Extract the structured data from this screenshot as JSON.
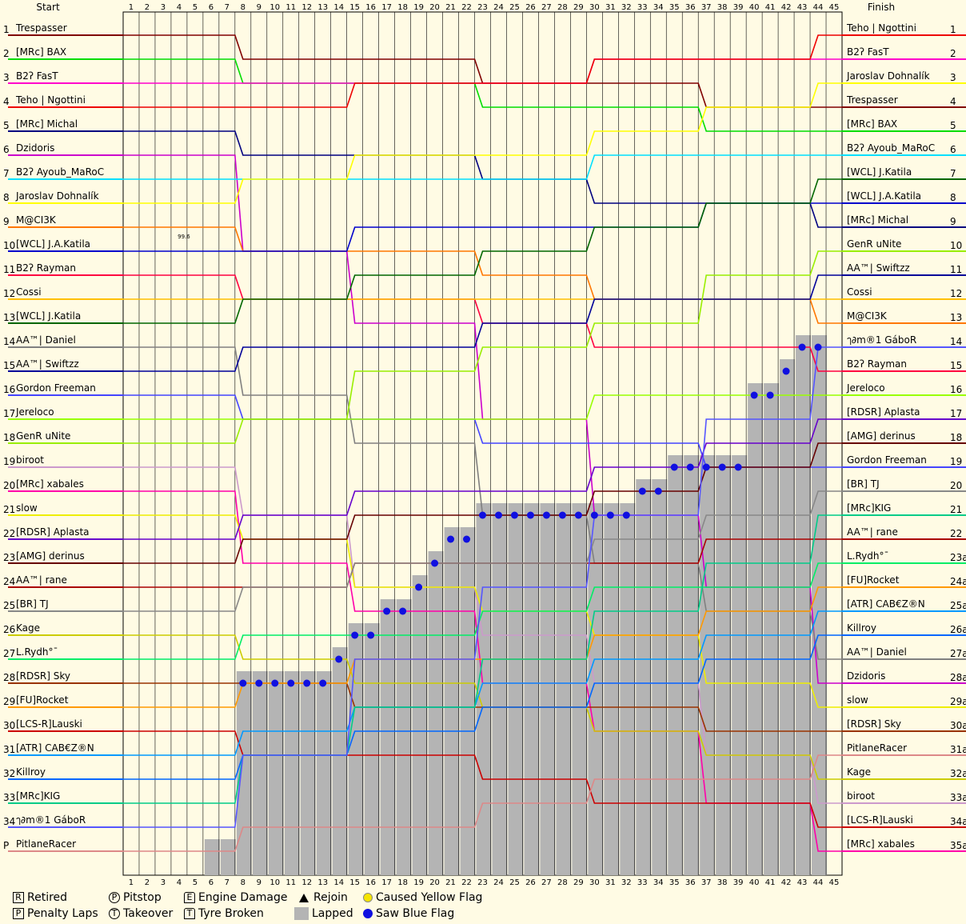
{
  "chart_data": {
    "type": "line",
    "title": "",
    "x_start_label": "Start",
    "x_end_label": "Finish",
    "laps": 45,
    "positions": 35,
    "start_pos_labels": [
      "1",
      "2",
      "3",
      "4",
      "5",
      "6",
      "7",
      "8",
      "9",
      "10",
      "11",
      "12",
      "13",
      "14",
      "15",
      "16",
      "17",
      "18",
      "19",
      "20",
      "21",
      "22",
      "23",
      "24",
      "25",
      "26",
      "27",
      "28",
      "29",
      "30",
      "31",
      "32",
      "33",
      "34",
      "P"
    ],
    "finish_pos_labels": [
      "1",
      "2",
      "3",
      "4",
      "5",
      "6",
      "7",
      "8",
      "9",
      "10",
      "11",
      "12",
      "13",
      "14",
      "15",
      "16",
      "17",
      "18",
      "19",
      "20",
      "21",
      "22",
      "23a",
      "24a",
      "25a",
      "26a",
      "27a",
      "28a",
      "29a",
      "30a",
      "31a",
      "32a",
      "33a",
      "34a",
      "35a"
    ],
    "start_names": [
      "Trespasser",
      "[MRc] BAX",
      "B2ʔ FasT",
      "Teho | Ngottini",
      "[MRc] Michal",
      "Dzidoris",
      "B2ʔ Ayoub_MaRoC",
      "Jaroslav Dohnalík",
      "M@CI3K",
      "[WCL] J.A.Katila",
      "B2ʔ Rayman",
      "Cossi",
      "[WCL] J.Katila",
      "AA™| Daniel",
      "AA™| Swiftzz",
      "Gordon Freeman",
      "Jereloco",
      "GenR uNite",
      "biroot",
      "[MRc] xabales",
      "slow",
      "[RDSR] Aplasta",
      "[AMG] derinus",
      "AA™| rane",
      "[BR] TJ",
      "Kage",
      "L.Rydh°¯",
      "[RDSR] Sky",
      "[FU]Rocket",
      "[LCS-R]Lauski",
      "[ATR] CAB€Z®N",
      "Killroy",
      "[MRc]KIG",
      "ๅ∂m®1 GáboR",
      "PitlaneRacer"
    ],
    "finish_names": [
      "Teho | Ngottini",
      "B2ʔ FasT",
      "Jaroslav Dohnalík",
      "Trespasser",
      "[MRc] BAX",
      "B2ʔ Ayoub_MaRoC",
      "[WCL] J.Katila",
      "[WCL] J.A.Katila",
      "[MRc] Michal",
      "GenR uNite",
      "AA™| Swiftzz",
      "Cossi",
      "M@CI3K",
      "ๅ∂m®1 GáboR",
      "B2ʔ Rayman",
      "Jereloco",
      "[RDSR] Aplasta",
      "[AMG] derinus",
      "Gordon Freeman",
      "[BR] TJ",
      "[MRc]KIG",
      "AA™| rane",
      "L.Rydh°¯",
      "[FU]Rocket",
      "[ATR] CAB€Z®N",
      "Killroy",
      "AA™| Daniel",
      "Dzidoris",
      "slow",
      "[RDSR] Sky",
      "PitlaneRacer",
      "Kage",
      "biroot",
      "[LCS-R]Lauski",
      "[MRc] xabales"
    ],
    "driver_colors": {
      "Trespasser": "#800000",
      "[MRc] BAX": "#00dd00",
      "B2ʔ FasT": "#ff00cc",
      "Teho | Ngottini": "#ee0000",
      "[MRc] Michal": "#000080",
      "Dzidoris": "#cc00cc",
      "B2ʔ Ayoub_MaRoC": "#00e0ff",
      "Jaroslav Dohnalík": "#ffff00",
      "M@CI3K": "#ff7700",
      "[WCL] J.A.Katila": "#0000cc",
      "B2ʔ Rayman": "#ff0040",
      "Cossi": "#ffc000",
      "[WCL] J.Katila": "#006600",
      "AA™| Daniel": "#808080",
      "AA™| Swiftzz": "#000099",
      "Gordon Freeman": "#4444ff",
      "Jereloco": "#99ff00",
      "GenR uNite": "#99ee00",
      "biroot": "#cc99cc",
      "[MRc] xabales": "#ff00aa",
      "slow": "#eeee00",
      "[RDSR] Aplasta": "#6600cc",
      "[AMG] derinus": "#660000",
      "AA™| rane": "#aa0000",
      "[BR] TJ": "#888888",
      "Kage": "#cccc00",
      "L.Rydh°¯": "#00ee66",
      "[RDSR] Sky": "#993300",
      "[FU]Rocket": "#ff9900",
      "[LCS-R]Lauski": "#cc0000",
      "[ATR] CAB€Z®N": "#0099ff",
      "Killroy": "#0066ff",
      "[MRc]KIG": "#00cc88",
      "ๅ∂m®1 GáboR": "#5555ff",
      "PitlaneRacer": "#dd8888"
    },
    "lapped_profile": [
      [
        6,
        35
      ],
      [
        7,
        35
      ],
      [
        8,
        28
      ],
      [
        9,
        28
      ],
      [
        10,
        28
      ],
      [
        11,
        28
      ],
      [
        12,
        28
      ],
      [
        13,
        28
      ],
      [
        14,
        27
      ],
      [
        15,
        26
      ],
      [
        16,
        26
      ],
      [
        17,
        25
      ],
      [
        18,
        25
      ],
      [
        19,
        24
      ],
      [
        20,
        23
      ],
      [
        21,
        22
      ],
      [
        22,
        22
      ],
      [
        23,
        21
      ],
      [
        24,
        21
      ],
      [
        25,
        21
      ],
      [
        26,
        21
      ],
      [
        27,
        21
      ],
      [
        28,
        21
      ],
      [
        29,
        21
      ],
      [
        30,
        21
      ],
      [
        31,
        21
      ],
      [
        32,
        21
      ],
      [
        33,
        20
      ],
      [
        34,
        20
      ],
      [
        35,
        19
      ],
      [
        36,
        19
      ],
      [
        37,
        19
      ],
      [
        38,
        19
      ],
      [
        39,
        19
      ],
      [
        40,
        16
      ],
      [
        41,
        16
      ],
      [
        42,
        15
      ],
      [
        43,
        14
      ],
      [
        44,
        14
      ]
    ],
    "legend": [
      {
        "sym": "R",
        "shape": "square",
        "label": "Retired"
      },
      {
        "sym": "P",
        "shape": "square",
        "label": "Penalty Laps"
      },
      {
        "sym": "P",
        "shape": "circle",
        "label": "Pitstop"
      },
      {
        "sym": "T",
        "shape": "circle",
        "label": "Takeover"
      },
      {
        "sym": "E",
        "shape": "house",
        "label": "Engine Damage"
      },
      {
        "sym": "T",
        "shape": "house",
        "label": "Tyre Broken"
      },
      {
        "sym": "",
        "shape": "triangle",
        "label": "Rejoin"
      },
      {
        "sym": "",
        "shape": "grey",
        "label": "Lapped"
      },
      {
        "sym": "",
        "shape": "yellow",
        "label": "Caused Yellow Flag"
      },
      {
        "sym": "",
        "shape": "blue",
        "label": "Saw Blue Flag"
      }
    ],
    "engine_damage_note": "99.6",
    "grid": true
  }
}
